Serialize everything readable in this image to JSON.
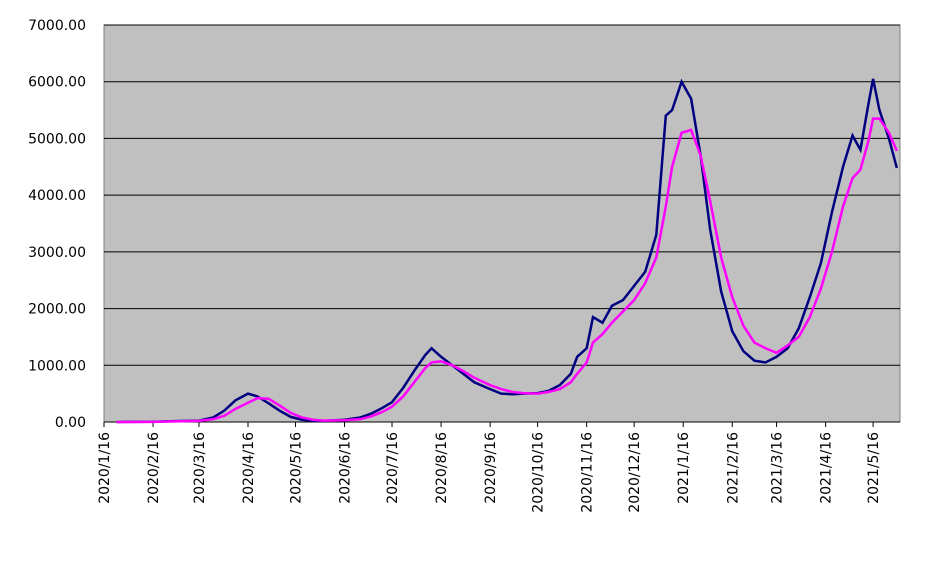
{
  "chart_data": {
    "type": "line",
    "x": [
      "2020/1/24",
      "2020/2/16",
      "2020/3/1",
      "2020/3/16",
      "2020/3/25",
      "2020/4/1",
      "2020/4/8",
      "2020/4/16",
      "2020/4/22",
      "2020/4/29",
      "2020/5/6",
      "2020/5/13",
      "2020/5/20",
      "2020/5/27",
      "2020/6/3",
      "2020/6/16",
      "2020/6/26",
      "2020/7/3",
      "2020/7/10",
      "2020/7/16",
      "2020/7/23",
      "2020/7/30",
      "2020/8/6",
      "2020/8/10",
      "2020/8/16",
      "2020/8/23",
      "2020/8/30",
      "2020/9/6",
      "2020/9/16",
      "2020/9/23",
      "2020/9/30",
      "2020/10/7",
      "2020/10/16",
      "2020/10/23",
      "2020/10/30",
      "2020/11/6",
      "2020/11/10",
      "2020/11/16",
      "2020/11/20",
      "2020/11/26",
      "2020/12/2",
      "2020/12/9",
      "2020/12/16",
      "2020/12/23",
      "2020/12/30",
      "2021/1/5",
      "2021/1/9",
      "2021/1/15",
      "2021/1/21",
      "2021/1/27",
      "2021/2/2",
      "2021/2/9",
      "2021/2/16",
      "2021/2/23",
      "2021/3/2",
      "2021/3/9",
      "2021/3/16",
      "2021/3/23",
      "2021/3/30",
      "2021/4/6",
      "2021/4/13",
      "2021/4/20",
      "2021/4/27",
      "2021/5/3",
      "2021/5/8",
      "2021/5/13",
      "2021/5/16",
      "2021/5/20",
      "2021/5/26",
      "2021/5/31"
    ],
    "series": [
      {
        "color": "#000080",
        "values": [
          0,
          5,
          15,
          25,
          80,
          200,
          380,
          500,
          450,
          330,
          200,
          90,
          40,
          20,
          20,
          40,
          80,
          150,
          250,
          350,
          600,
          900,
          1180,
          1300,
          1150,
          1000,
          850,
          700,
          580,
          500,
          490,
          500,
          510,
          550,
          650,
          850,
          1150,
          1300,
          1850,
          1750,
          2050,
          2150,
          2400,
          2650,
          3300,
          5400,
          5500,
          6000,
          5700,
          4700,
          3400,
          2300,
          1600,
          1250,
          1080,
          1050,
          1150,
          1300,
          1650,
          2200,
          2800,
          3700,
          4500,
          5050,
          4800,
          5600,
          6050,
          5500,
          5000,
          4480
        ]
      },
      {
        "color": "#ff00ff",
        "values": [
          0,
          3,
          10,
          20,
          50,
          110,
          230,
          340,
          420,
          410,
          290,
          160,
          80,
          40,
          25,
          30,
          50,
          100,
          180,
          270,
          450,
          700,
          950,
          1050,
          1070,
          1000,
          900,
          780,
          650,
          580,
          530,
          510,
          500,
          530,
          580,
          700,
          850,
          1050,
          1400,
          1550,
          1750,
          1950,
          2150,
          2450,
          2900,
          3800,
          4500,
          5100,
          5150,
          4700,
          3900,
          2900,
          2200,
          1700,
          1400,
          1300,
          1220,
          1350,
          1500,
          1850,
          2350,
          3000,
          3800,
          4300,
          4450,
          4950,
          5350,
          5350,
          5100,
          4780
        ]
      }
    ],
    "xlim": [
      "2020/1/16",
      "2021/6/2"
    ],
    "xticks": [
      "2020/1/16",
      "2020/2/16",
      "2020/3/16",
      "2020/4/16",
      "2020/5/16",
      "2020/6/16",
      "2020/7/16",
      "2020/8/16",
      "2020/9/16",
      "2020/10/16",
      "2020/11/16",
      "2020/12/16",
      "2021/1/16",
      "2021/2/16",
      "2021/3/16",
      "2021/4/16",
      "2021/5/16"
    ],
    "ylim": [
      0,
      7000
    ],
    "yticks": [
      {
        "value": 0,
        "label": "0.00"
      },
      {
        "value": 1000,
        "label": "1000.00"
      },
      {
        "value": 2000,
        "label": "2000.00"
      },
      {
        "value": 3000,
        "label": "3000.00"
      },
      {
        "value": 4000,
        "label": "4000.00"
      },
      {
        "value": 5000,
        "label": "5000.00"
      },
      {
        "value": 6000,
        "label": "6000.00"
      },
      {
        "value": 7000,
        "label": "7000.00"
      }
    ],
    "grid": true
  }
}
